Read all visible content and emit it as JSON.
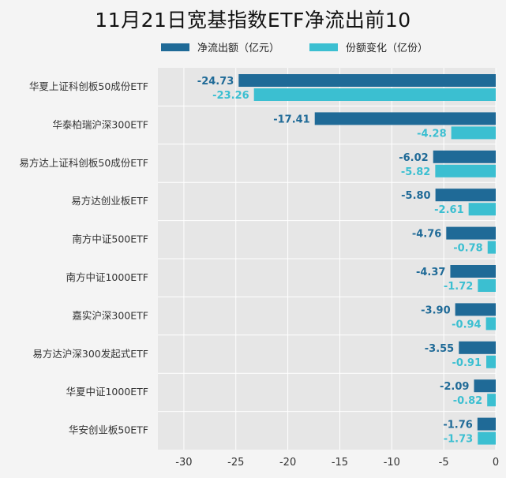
{
  "colors": {
    "flow": "#1f6a97",
    "share": "#3bbfd1",
    "plot_bg": "#e6e6e6",
    "grid": "#ffffff",
    "page_bg": "#f4f4f4"
  },
  "chart_data": {
    "type": "bar",
    "orientation": "horizontal",
    "title": "11月21日宽基指数ETF净流出前10",
    "categories": [
      "华夏上证科创板50成份ETF",
      "华泰柏瑞沪深300ETF",
      "易方达上证科创板50成份ETF",
      "易方达创业板ETF",
      "南方中证500ETF",
      "南方中证1000ETF",
      "嘉实沪深300ETF",
      "易方达沪深300发起式ETF",
      "华夏中证1000ETF",
      "华安创业板50ETF"
    ],
    "series": [
      {
        "name": "净流出额（亿元）",
        "values": [
          -24.73,
          -17.41,
          -6.02,
          -5.8,
          -4.76,
          -4.37,
          -3.9,
          -3.55,
          -2.09,
          -1.76
        ]
      },
      {
        "name": "份额变化（亿份）",
        "values": [
          -23.26,
          -4.28,
          -5.82,
          -2.61,
          -0.78,
          -1.72,
          -0.94,
          -0.91,
          -0.82,
          -1.73
        ]
      }
    ],
    "data_labels": [
      [
        "-24.73",
        "-17.41",
        "-6.02",
        "-5.80",
        "-4.76",
        "-4.37",
        "-3.90",
        "-3.55",
        "-2.09",
        "-1.76"
      ],
      [
        "-23.26",
        "-4.28",
        "-5.82",
        "-2.61",
        "-0.78",
        "-1.72",
        "-0.94",
        "-0.91",
        "-0.82",
        "-1.73"
      ]
    ],
    "xlim": [
      -32.5,
      0
    ],
    "xticks": [
      -30,
      -25,
      -20,
      -15,
      -10,
      -5,
      0
    ],
    "xtick_labels": [
      "-30",
      "-25",
      "-20",
      "-15",
      "-10",
      "-5",
      "0"
    ],
    "grid": true,
    "legend_position": "top"
  }
}
